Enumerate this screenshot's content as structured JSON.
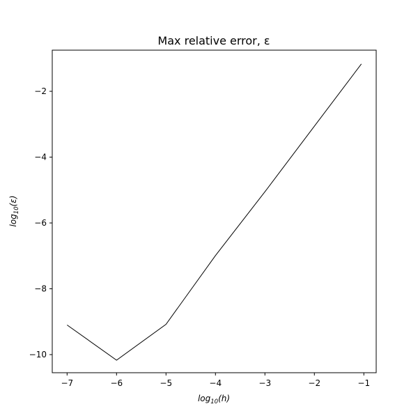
{
  "chart_data": {
    "type": "line",
    "title": "Max relative error, ε",
    "xlabel": {
      "base": "log",
      "subscript": "10",
      "arg": "(h)"
    },
    "ylabel": {
      "base": "log",
      "subscript": "10",
      "arg": "(ε)"
    },
    "xlim": [
      -7.3,
      -0.75
    ],
    "ylim": [
      -10.55,
      -0.75
    ],
    "xticks": [
      -7,
      -6,
      -5,
      -4,
      -3,
      -2,
      -1
    ],
    "yticks": [
      -10,
      -8,
      -6,
      -4,
      -2
    ],
    "grid": false,
    "legend": "none",
    "series": [
      {
        "color": "#000000",
        "x": [
          -7,
          -6,
          -5,
          -4,
          -3,
          -2,
          -1.05
        ],
        "y": [
          -9.1,
          -10.17,
          -9.08,
          -6.99,
          -5.05,
          -3.06,
          -1.17
        ]
      }
    ]
  }
}
